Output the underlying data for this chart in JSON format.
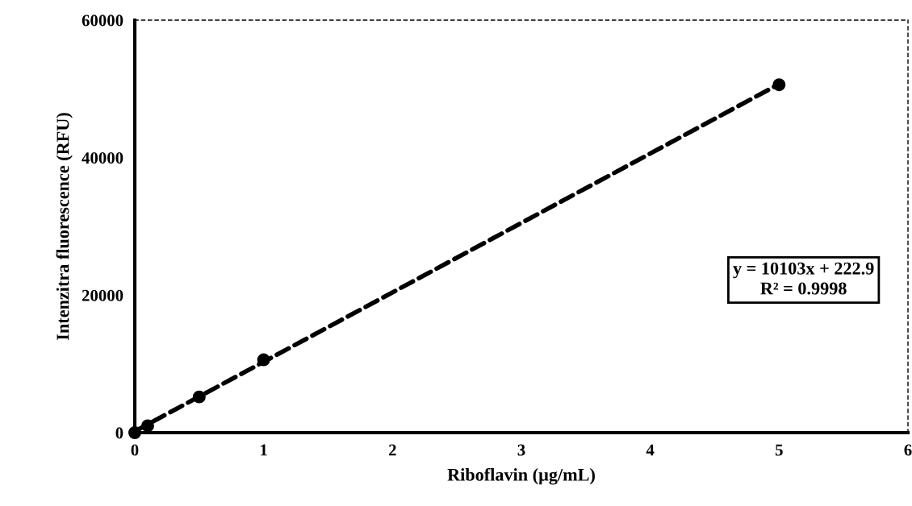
{
  "chart_data": {
    "type": "scatter",
    "xlabel": "Riboflavin (µg/mL)",
    "ylabel": "Intenzitra fluorescence (RFU)",
    "xlim": [
      0,
      6
    ],
    "xticks": [
      0,
      1,
      2,
      3,
      4,
      5,
      6
    ],
    "ylim": [
      0,
      60000
    ],
    "yticks": [
      0,
      20000,
      40000,
      60000
    ],
    "grid": false,
    "legend": false,
    "series": [
      {
        "color": "#000000",
        "marker": "circle",
        "x": [
          0,
          0.1,
          0.5,
          1,
          5
        ],
        "values": [
          0,
          1000,
          5200,
          10600,
          50600
        ]
      },
      {
        "type": "line",
        "color": "#000000",
        "marker": "none",
        "line_style": "dashed",
        "x": [
          0,
          5
        ],
        "values": [
          200,
          50700
        ]
      }
    ],
    "annotations": [
      "y = 10103x + 222.9\nR² = 0.9998"
    ]
  }
}
